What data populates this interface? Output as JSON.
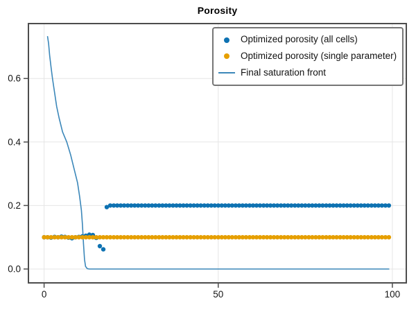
{
  "chart_data": {
    "type": "mixed",
    "title": "Porosity",
    "xlabel": "",
    "ylabel": "",
    "xlim": [
      -4.5,
      104
    ],
    "ylim": [
      -0.0437,
      0.773
    ],
    "grid": true,
    "legend_position": "top-right",
    "draw_order": [
      2,
      0,
      1
    ],
    "x_ticks": [
      {
        "value": 0,
        "label": "0"
      },
      {
        "value": 50,
        "label": "50"
      },
      {
        "value": 100,
        "label": "100"
      }
    ],
    "y_ticks": [
      {
        "value": 0.0,
        "label": "0.0"
      },
      {
        "value": 0.2,
        "label": "0.2"
      },
      {
        "value": 0.4,
        "label": "0.4"
      },
      {
        "value": 0.6,
        "label": "0.6"
      }
    ],
    "series": [
      {
        "name": "Optimized porosity (all cells)",
        "type": "scatter",
        "color": "#0e72b2",
        "marker": "circle",
        "x_start": 0,
        "x_step": 1,
        "y": [
          0.1,
          0.1,
          0.099,
          0.101,
          0.1,
          0.102,
          0.101,
          0.099,
          0.097,
          0.1,
          0.101,
          0.103,
          0.105,
          0.108,
          0.107,
          0.098,
          0.072,
          0.062,
          0.195,
          0.2,
          0.2,
          0.2,
          0.2,
          0.2,
          0.2,
          0.2,
          0.2,
          0.2,
          0.2,
          0.2,
          0.2,
          0.2,
          0.2,
          0.2,
          0.2,
          0.2,
          0.2,
          0.2,
          0.2,
          0.2,
          0.2,
          0.2,
          0.2,
          0.2,
          0.2,
          0.2,
          0.2,
          0.2,
          0.2,
          0.2,
          0.2,
          0.2,
          0.2,
          0.2,
          0.2,
          0.2,
          0.2,
          0.2,
          0.2,
          0.2,
          0.2,
          0.2,
          0.2,
          0.2,
          0.2,
          0.2,
          0.2,
          0.2,
          0.2,
          0.2,
          0.2,
          0.2,
          0.2,
          0.2,
          0.2,
          0.2,
          0.2,
          0.2,
          0.2,
          0.2,
          0.2,
          0.2,
          0.2,
          0.2,
          0.2,
          0.2,
          0.2,
          0.2,
          0.2,
          0.2,
          0.2,
          0.2,
          0.2,
          0.2,
          0.2,
          0.2,
          0.2,
          0.2,
          0.2,
          0.2
        ]
      },
      {
        "name": "Optimized porosity (single parameter)",
        "type": "scatter",
        "color": "#e69f00",
        "marker": "circle",
        "x_start": 0,
        "x_step": 1,
        "y": [
          0.1,
          0.1,
          0.1,
          0.1,
          0.1,
          0.1,
          0.1,
          0.1,
          0.1,
          0.1,
          0.1,
          0.1,
          0.1,
          0.1,
          0.1,
          0.1,
          0.1,
          0.1,
          0.1,
          0.1,
          0.1,
          0.1,
          0.1,
          0.1,
          0.1,
          0.1,
          0.1,
          0.1,
          0.1,
          0.1,
          0.1,
          0.1,
          0.1,
          0.1,
          0.1,
          0.1,
          0.1,
          0.1,
          0.1,
          0.1,
          0.1,
          0.1,
          0.1,
          0.1,
          0.1,
          0.1,
          0.1,
          0.1,
          0.1,
          0.1,
          0.1,
          0.1,
          0.1,
          0.1,
          0.1,
          0.1,
          0.1,
          0.1,
          0.1,
          0.1,
          0.1,
          0.1,
          0.1,
          0.1,
          0.1,
          0.1,
          0.1,
          0.1,
          0.1,
          0.1,
          0.1,
          0.1,
          0.1,
          0.1,
          0.1,
          0.1,
          0.1,
          0.1,
          0.1,
          0.1,
          0.1,
          0.1,
          0.1,
          0.1,
          0.1,
          0.1,
          0.1,
          0.1,
          0.1,
          0.1,
          0.1,
          0.1,
          0.1,
          0.1,
          0.1,
          0.1,
          0.1,
          0.1,
          0.1,
          0.1
        ]
      },
      {
        "name": "Final saturation front",
        "type": "line",
        "color": "#3b87b9",
        "points": [
          [
            1,
            0.732
          ],
          [
            1.3,
            0.71
          ],
          [
            1.6,
            0.673
          ],
          [
            2,
            0.636
          ],
          [
            2.4,
            0.6
          ],
          [
            3,
            0.556
          ],
          [
            3.6,
            0.512
          ],
          [
            4.3,
            0.476
          ],
          [
            5.3,
            0.432
          ],
          [
            6.5,
            0.4
          ],
          [
            7.6,
            0.36
          ],
          [
            8.6,
            0.316
          ],
          [
            9.6,
            0.272
          ],
          [
            10.2,
            0.229
          ],
          [
            10.7,
            0.185
          ],
          [
            11,
            0.14
          ],
          [
            11.3,
            0.08
          ],
          [
            11.6,
            0.03
          ],
          [
            11.9,
            0.008
          ],
          [
            12.4,
            0.001
          ],
          [
            13,
            0
          ],
          [
            99,
            0
          ]
        ]
      }
    ]
  }
}
